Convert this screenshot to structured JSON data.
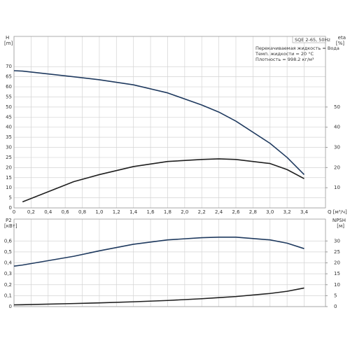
{
  "chart_data": [
    {
      "type": "line",
      "x": [
        0,
        0.1,
        0.7,
        1.0,
        1.4,
        1.8,
        2.2,
        2.4,
        2.6,
        3.0,
        3.2,
        3.4
      ],
      "series": [
        {
          "color": "#1f3a5f",
          "values": [
            68,
            67.8,
            65,
            63.5,
            61,
            57,
            51,
            47.5,
            43,
            32,
            25,
            16.5
          ]
        },
        {
          "color": "#1f1f1f",
          "axis": "y2",
          "values": [
            null,
            3,
            13,
            16.5,
            20.5,
            23,
            24,
            24.3,
            24,
            22,
            19,
            14.5
          ]
        }
      ],
      "xlim": [
        0,
        3.65
      ],
      "ylim": [
        0,
        85
      ],
      "y2lim": [
        0,
        85
      ],
      "xticks": [
        0,
        {
          "value": 0.2,
          "label": "0,2"
        },
        {
          "value": 0.4,
          "label": "0,4"
        },
        {
          "value": 0.6,
          "label": "0,6"
        },
        {
          "value": 0.8,
          "label": "0,8"
        },
        {
          "value": 1.0,
          "label": "1,0"
        },
        {
          "value": 1.2,
          "label": "1,2"
        },
        {
          "value": 1.4,
          "label": "1,4"
        },
        {
          "value": 1.6,
          "label": "1,6"
        },
        {
          "value": 1.8,
          "label": "1,8"
        },
        {
          "value": 2.0,
          "label": "2,0"
        },
        {
          "value": 2.2,
          "label": "2,2"
        },
        {
          "value": 2.4,
          "label": "2,4"
        },
        {
          "value": 2.6,
          "label": "2,6"
        },
        {
          "value": 2.8,
          "label": "2,8"
        },
        {
          "value": 3.0,
          "label": "3,0"
        },
        {
          "value": 3.2,
          "label": "3,2"
        },
        {
          "value": 3.4,
          "label": "3,4"
        }
      ],
      "yticks": [
        0,
        5,
        10,
        15,
        20,
        25,
        30,
        35,
        40,
        45,
        50,
        55,
        60,
        65,
        70
      ],
      "y2ticks": [
        10,
        20,
        30,
        40,
        50
      ],
      "y_label": "H",
      "y_unit": "[m]",
      "y2_label": "eta",
      "y2_unit": "[%]",
      "x_label": "Q [м³/ч]",
      "annotations": [
        "SQE 2-65, 50Hz",
        "Перекачиваемая жидкость = Вода",
        "Темп. жидкости = 20 °C",
        "Плотность = 998.2 кг/м³"
      ],
      "grid": true
    },
    {
      "type": "line",
      "x": [
        0,
        0.1,
        0.7,
        1.0,
        1.4,
        1.8,
        2.2,
        2.4,
        2.6,
        3.0,
        3.2,
        3.4
      ],
      "series": [
        {
          "color": "#1f3a5f",
          "values": [
            0.37,
            0.38,
            0.46,
            0.51,
            0.57,
            0.61,
            0.63,
            0.635,
            0.635,
            0.61,
            0.58,
            0.53
          ]
        },
        {
          "color": "#1f1f1f",
          "axis": "y2",
          "values": [
            0.8,
            0.85,
            1.4,
            1.7,
            2.2,
            2.8,
            3.6,
            4.1,
            4.6,
            6,
            7,
            8.5
          ]
        }
      ],
      "xlim": [
        0,
        3.65
      ],
      "ylim": [
        0,
        0.8
      ],
      "y2lim": [
        0,
        40
      ],
      "yticks": [
        0,
        {
          "value": 0.1,
          "label": "0,1"
        },
        {
          "value": 0.2,
          "label": "0,2"
        },
        {
          "value": 0.3,
          "label": "0,3"
        },
        {
          "value": 0.4,
          "label": "0,4"
        },
        {
          "value": 0.5,
          "label": "0,5"
        },
        {
          "value": 0.6,
          "label": "0,6"
        }
      ],
      "y2ticks": [
        0,
        5,
        10,
        15,
        20,
        25,
        30
      ],
      "y_label": "P2",
      "y_unit": "[кВт]",
      "y2_label": "NPSH",
      "y2_unit": "[м]",
      "grid": true
    }
  ]
}
